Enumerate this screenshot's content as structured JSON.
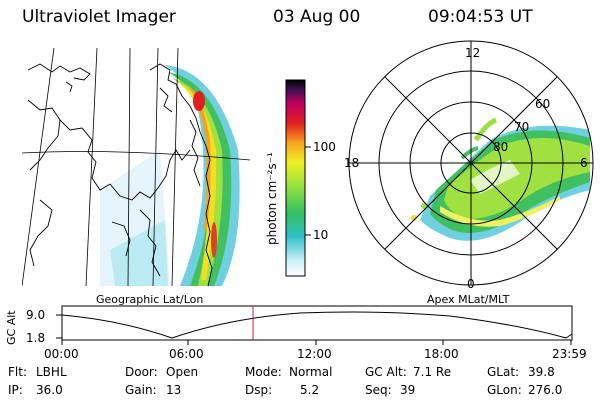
{
  "header": {
    "instrument": "Ultraviolet Imager",
    "date": "03 Aug 00",
    "time": "09:04:53 UT"
  },
  "colorbar": {
    "unit_label": "photon cm⁻²s⁻¹",
    "ticks": [
      "100",
      "10"
    ],
    "scale": "log"
  },
  "maps": {
    "left_label": "Geographic Lat/Lon",
    "right_label": "Apex MLat/MLT",
    "polar_mlt_labels": {
      "top": "12",
      "left": "18",
      "right": "6",
      "bottom": "0"
    },
    "polar_mlat_labels": [
      "60",
      "70",
      "80"
    ]
  },
  "altitude_plot": {
    "ylabel": "GC Alt",
    "y_ticks": [
      "9.0",
      "1.8"
    ],
    "x_ticks": [
      "00:00",
      "06:00",
      "12:00",
      "18:00",
      "23:59"
    ],
    "marker_time": "09:04:53"
  },
  "info": {
    "flt_label": "Flt:",
    "flt_value": "LBHL",
    "ip_label": "IP:",
    "ip_value": "36.0",
    "door_label": "Door:",
    "door_value": "Open",
    "gain_label": "Gain:",
    "gain_value": "13",
    "mode_label": "Mode:",
    "mode_value": "Normal",
    "dsp_label": "Dsp:",
    "dsp_value": "5.2",
    "gcalt_label": "GC Alt:",
    "gcalt_value": "7.1 Re",
    "seq_label": "Seq:",
    "seq_value": "39",
    "glat_label": "GLat:",
    "glat_value": "39.8",
    "glon_label": "GLon:",
    "glon_value": "276.0"
  },
  "colors": {
    "marker": "#cc2222",
    "auroral_peak": "#e02020",
    "auroral_mid": "#f0e020",
    "auroral_low": "#40c060",
    "auroral_faint": "#70d0e0"
  }
}
